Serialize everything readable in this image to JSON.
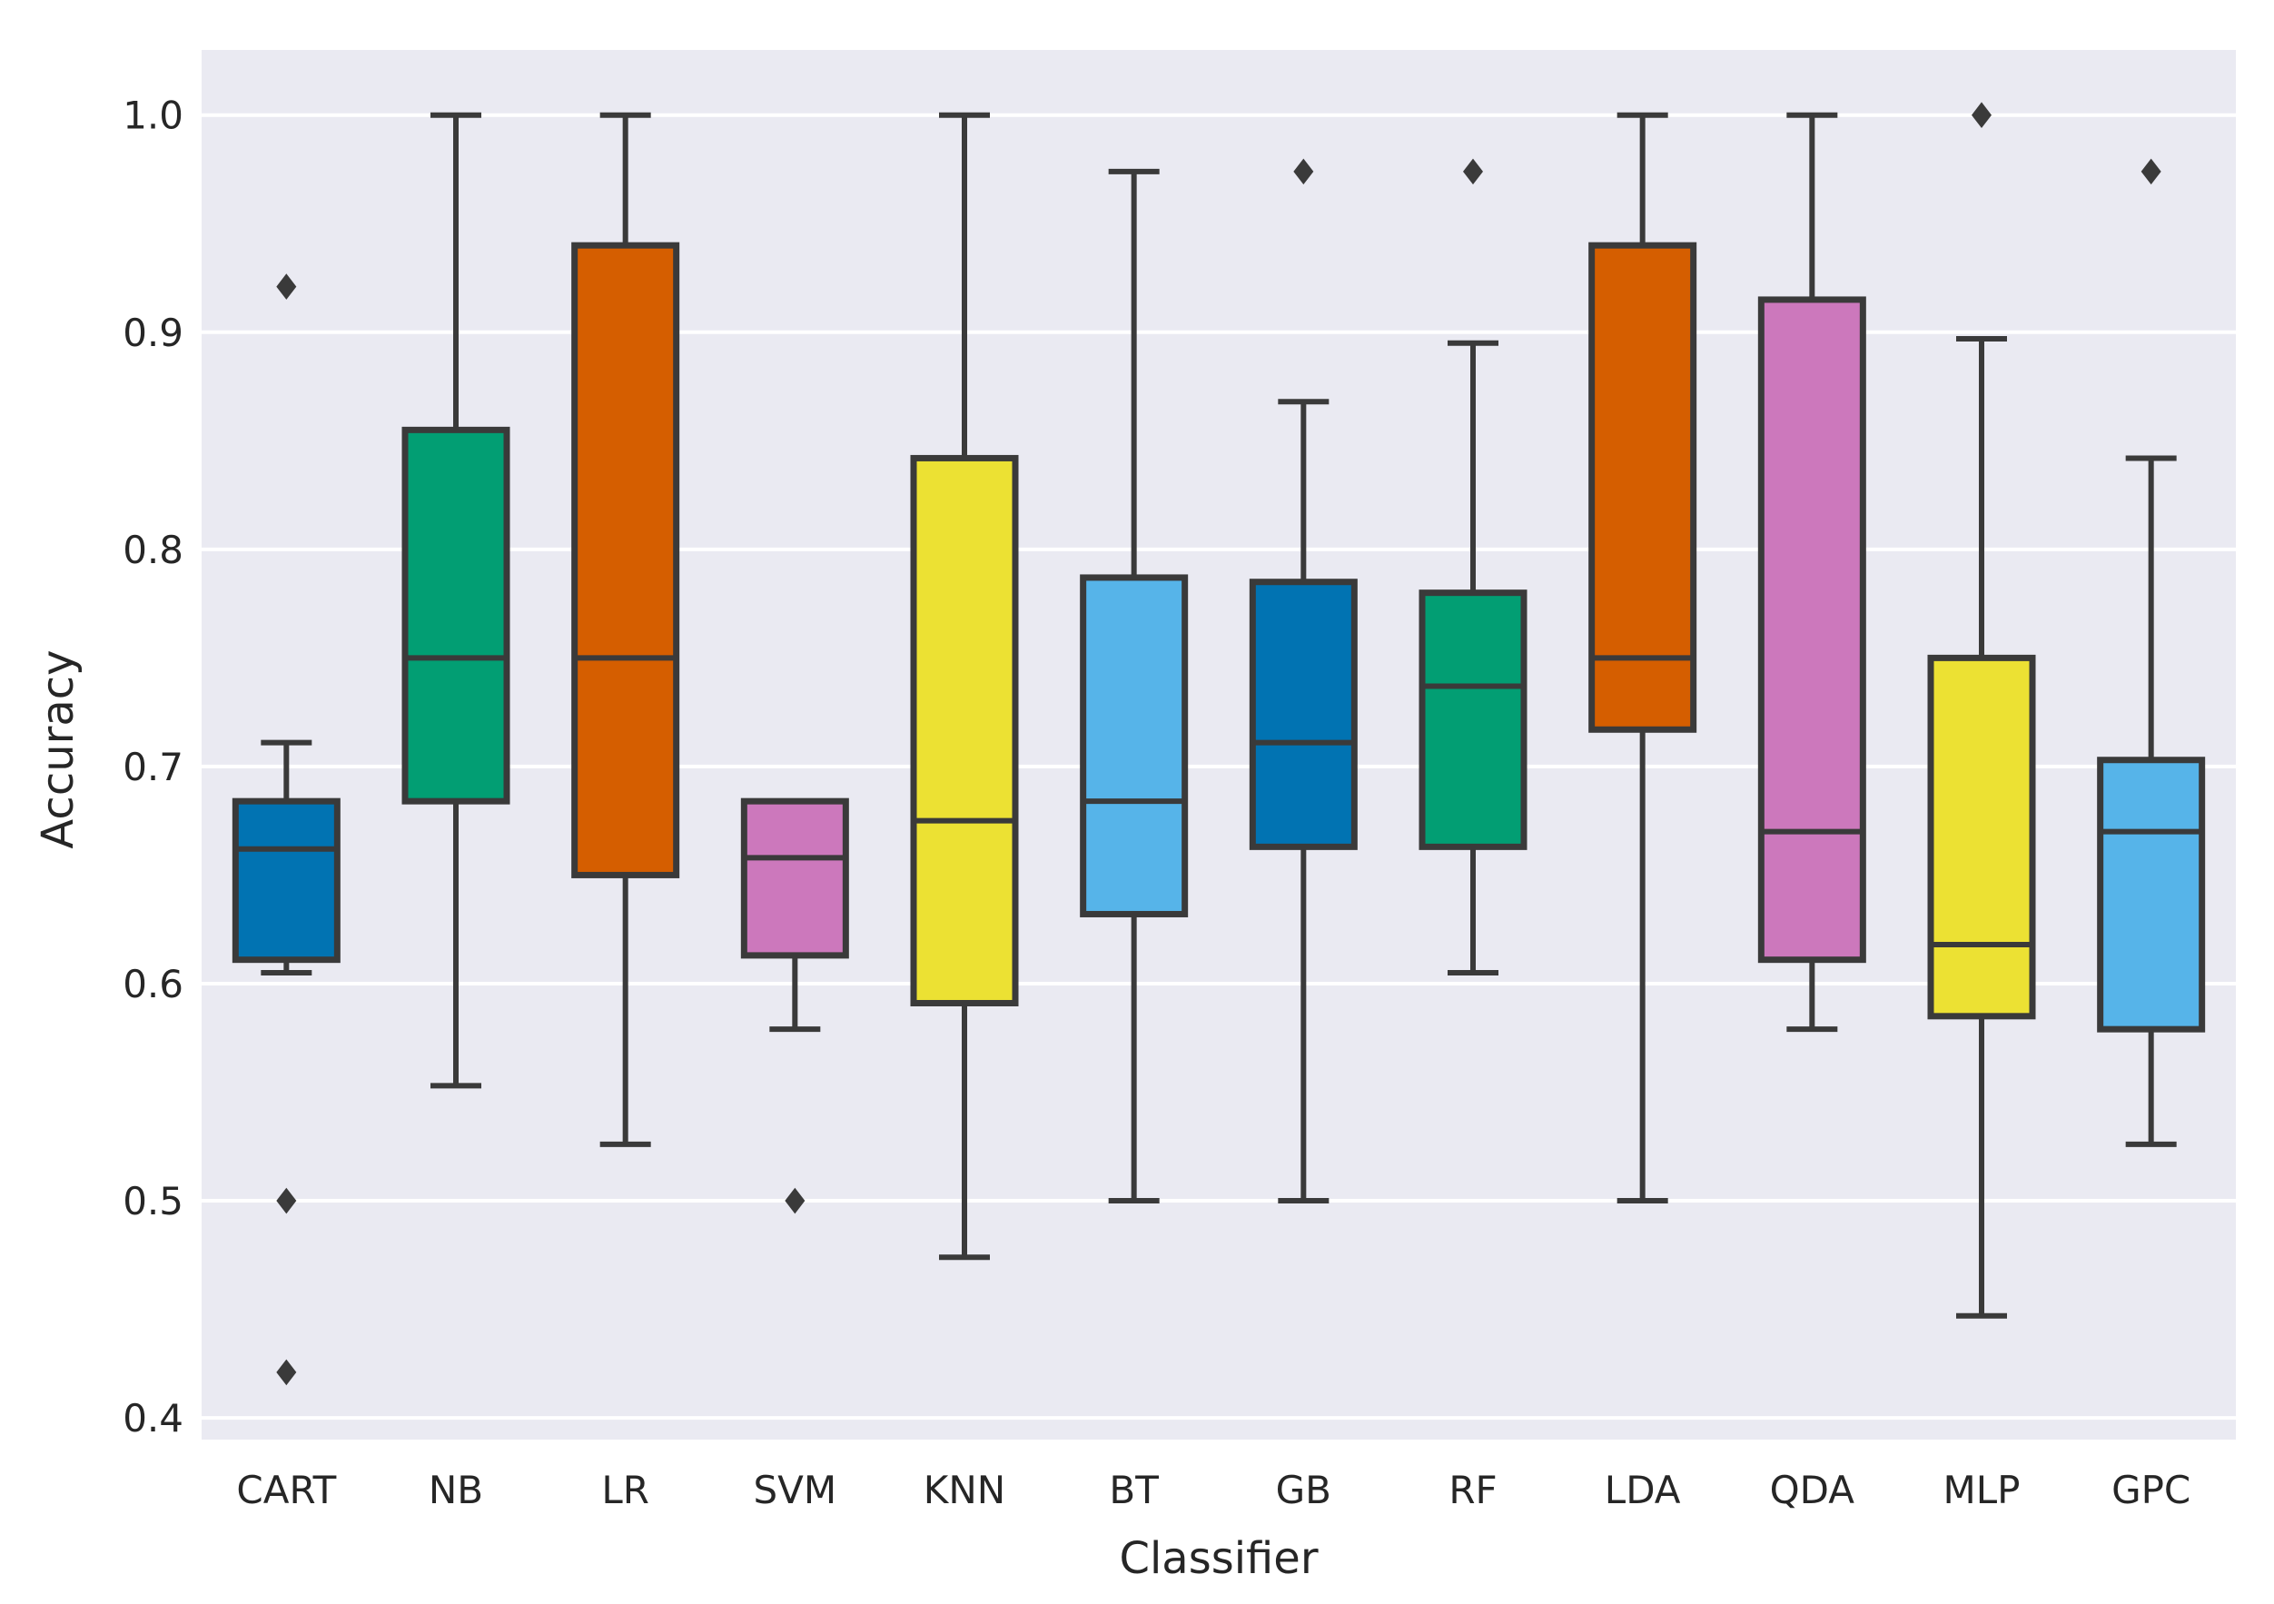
{
  "chart_data": {
    "type": "box",
    "title": "",
    "xlabel": "Classifier",
    "ylabel": "Accuracy",
    "ylim": [
      0.39,
      1.03
    ],
    "yticks": [
      0.4,
      0.5,
      0.6,
      0.7,
      0.8,
      0.9,
      1.0
    ],
    "ytick_labels": [
      "0.4",
      "0.5",
      "0.6",
      "0.7",
      "0.8",
      "0.9",
      "1.0"
    ],
    "grid": true,
    "categories": [
      "CART",
      "NB",
      "LR",
      "SVM",
      "KNN",
      "BT",
      "GB",
      "RF",
      "LDA",
      "QDA",
      "MLP",
      "GPC"
    ],
    "boxes": [
      {
        "name": "CART",
        "color": "#0173b2",
        "whislo": 0.605,
        "q1": 0.611,
        "med": 0.662,
        "q3": 0.684,
        "whishi": 0.711,
        "fliers": [
          0.921,
          0.5,
          0.421
        ]
      },
      {
        "name": "NB",
        "color": "#029e73",
        "whislo": 0.553,
        "q1": 0.684,
        "med": 0.75,
        "q3": 0.855,
        "whishi": 1.0,
        "fliers": []
      },
      {
        "name": "LR",
        "color": "#d55e00",
        "whislo": 0.526,
        "q1": 0.65,
        "med": 0.75,
        "q3": 0.94,
        "whishi": 1.0,
        "fliers": []
      },
      {
        "name": "SVM",
        "color": "#cc78bc",
        "whislo": 0.579,
        "q1": 0.613,
        "med": 0.658,
        "q3": 0.684,
        "whishi": 0.684,
        "fliers": [
          0.5
        ]
      },
      {
        "name": "KNN",
        "color": "#ece133",
        "whislo": 0.474,
        "q1": 0.591,
        "med": 0.675,
        "q3": 0.842,
        "whishi": 1.0,
        "fliers": []
      },
      {
        "name": "BT",
        "color": "#56b4e9",
        "whislo": 0.5,
        "q1": 0.632,
        "med": 0.684,
        "q3": 0.787,
        "whishi": 0.974,
        "fliers": []
      },
      {
        "name": "GB",
        "color": "#0173b2",
        "whislo": 0.5,
        "q1": 0.663,
        "med": 0.711,
        "q3": 0.785,
        "whishi": 0.868,
        "fliers": [
          0.974
        ]
      },
      {
        "name": "RF",
        "color": "#029e73",
        "whislo": 0.605,
        "q1": 0.663,
        "med": 0.737,
        "q3": 0.78,
        "whishi": 0.895,
        "fliers": [
          0.974
        ]
      },
      {
        "name": "LDA",
        "color": "#d55e00",
        "whislo": 0.5,
        "q1": 0.717,
        "med": 0.75,
        "q3": 0.94,
        "whishi": 1.0,
        "fliers": []
      },
      {
        "name": "QDA",
        "color": "#cc78bc",
        "whislo": 0.579,
        "q1": 0.611,
        "med": 0.67,
        "q3": 0.915,
        "whishi": 1.0,
        "fliers": []
      },
      {
        "name": "MLP",
        "color": "#ece133",
        "whislo": 0.447,
        "q1": 0.585,
        "med": 0.618,
        "q3": 0.75,
        "whishi": 0.897,
        "fliers": [
          1.0
        ]
      },
      {
        "name": "GPC",
        "color": "#56b4e9",
        "whislo": 0.526,
        "q1": 0.579,
        "med": 0.67,
        "q3": 0.703,
        "whishi": 0.842,
        "fliers": [
          0.974
        ]
      }
    ]
  }
}
